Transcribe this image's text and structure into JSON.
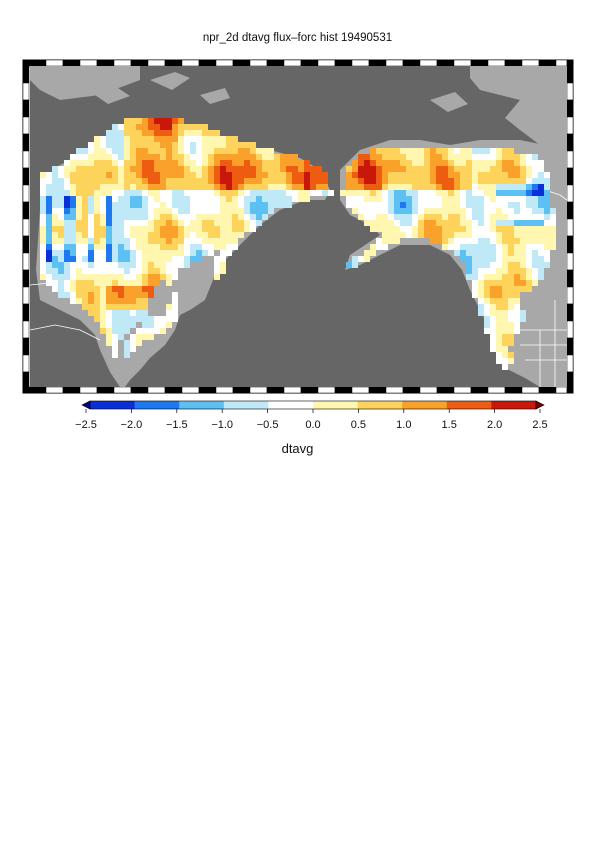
{
  "title": "npr_2d dtavg flux–forc hist 19490531",
  "variable": "dtavg",
  "colorbar": {
    "ticks": [
      "−2.5",
      "−2.0",
      "−1.5",
      "−1.0",
      "−0.5",
      "0.0",
      "0.5",
      "1.0",
      "1.5",
      "2.0",
      "2.5"
    ],
    "min": -2.5,
    "max": 2.5,
    "extend": "both",
    "colors": [
      "#00008b",
      "#0a2fd6",
      "#1e78f0",
      "#5cc1f2",
      "#bfe9f7",
      "#ffffff",
      "#fff6b0",
      "#fdd35c",
      "#f9a12a",
      "#ee5c12",
      "#c8180c",
      "#7d0000"
    ]
  },
  "map": {
    "ocean_color": "#666666",
    "land_color": "#a8a8a8",
    "border_color": "#ffffff",
    "frame": "alternating black/white tick border"
  }
}
